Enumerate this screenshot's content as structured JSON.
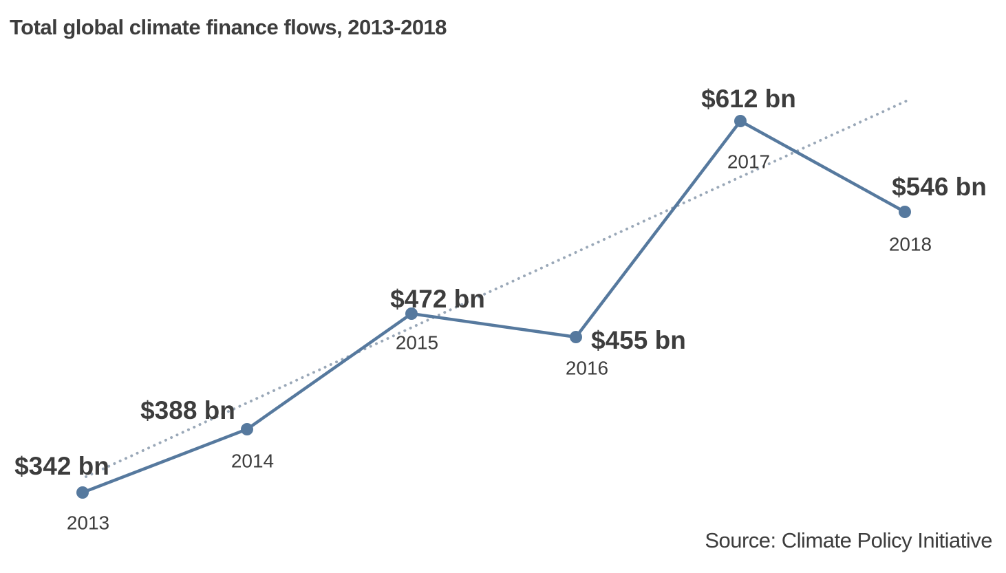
{
  "chart_data": {
    "type": "line",
    "title": "Total global climate finance flows, 2013-2018",
    "source": "Source: Climate Policy Initiative",
    "x": [
      "2013",
      "2014",
      "2015",
      "2016",
      "2017",
      "2018"
    ],
    "series": [
      {
        "values": [
          342,
          388,
          472,
          455,
          612,
          546
        ],
        "data_labels": [
          "$342 bn",
          "$388 bn",
          "$472 bn",
          "$455 bn",
          "$612 bn",
          "$546 bn"
        ],
        "color": "#56799e"
      }
    ],
    "trendline": {
      "style": "dotted",
      "color": "#9aa8b8"
    },
    "axes_visible": false,
    "grid": false
  }
}
